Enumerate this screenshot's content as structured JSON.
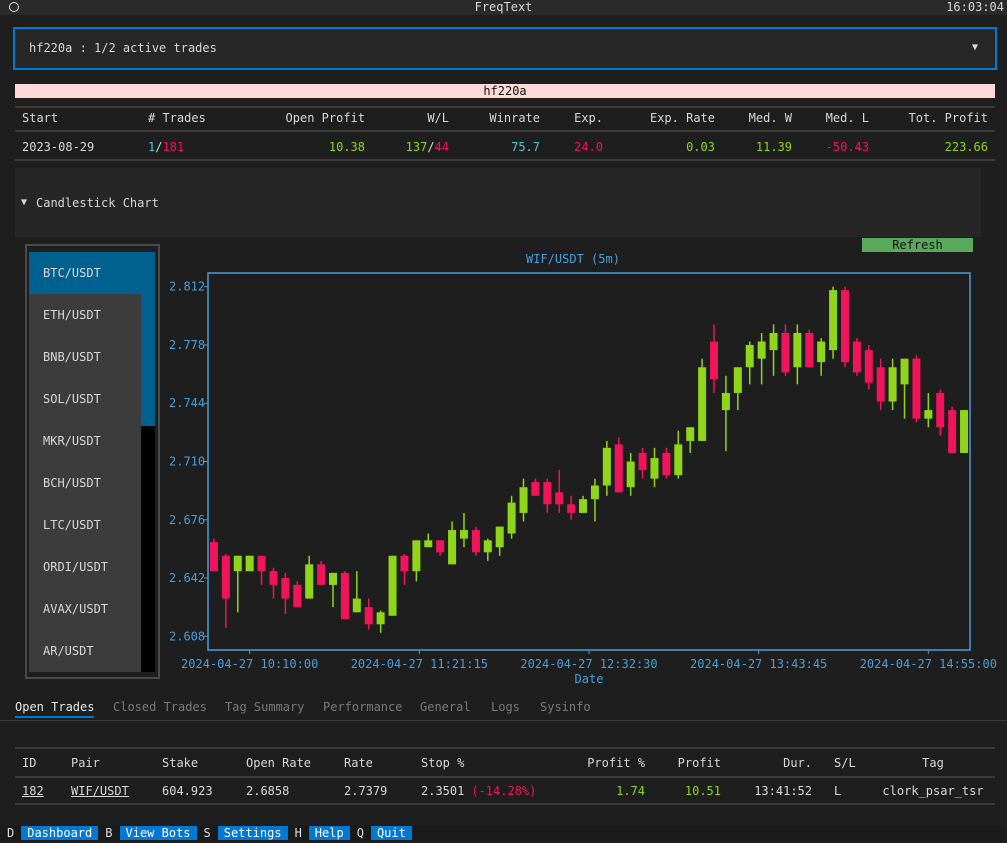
{
  "app": {
    "title": "FreqText",
    "clock": "16:03:04"
  },
  "bot_select": "hf220a : 1/2 active trades",
  "bot_name": "hf220a",
  "summary": {
    "headers": [
      "Start",
      "# Trades",
      "Open Profit",
      "W/L",
      "Winrate",
      "Exp.",
      "Exp. Rate",
      "Med. W",
      "Med. L",
      "Tot. Profit"
    ],
    "row": [
      [
        {
          "text": "2023-08-29"
        }
      ],
      [
        {
          "text": "1",
          "color": "#4fc8d6"
        },
        {
          "text": "/"
        },
        {
          "text": "181",
          "color": "#f0145a"
        }
      ],
      [
        {
          "text": "10.38",
          "color": "#8fd61a"
        }
      ],
      [
        {
          "text": "137",
          "color": "#8fd61a"
        },
        {
          "text": "/"
        },
        {
          "text": "44",
          "color": "#f0145a"
        }
      ],
      [
        {
          "text": "75.7",
          "color": "#4fc8d6"
        }
      ],
      [
        {
          "text": "24.0",
          "color": "#f0145a"
        }
      ],
      [
        {
          "text": "0.03",
          "color": "#8fd61a"
        }
      ],
      [
        {
          "text": "11.39",
          "color": "#8fd61a"
        }
      ],
      [
        {
          "text": "-50.43",
          "color": "#f0145a"
        }
      ],
      [
        {
          "text": "223.66",
          "color": "#8fd61a"
        }
      ]
    ]
  },
  "chart_section": "Candlestick Chart",
  "pairs": [
    "BTC/USDT",
    "ETH/USDT",
    "BNB/USDT",
    "SOL/USDT",
    "MKR/USDT",
    "BCH/USDT",
    "LTC/USDT",
    "ORDI/USDT",
    "AVAX/USDT",
    "AR/USDT"
  ],
  "selected_pair": 0,
  "refresh": "Refresh",
  "chart_data": {
    "type": "candlestick",
    "title": "WIF/USDT (5m)",
    "x_label": "Date",
    "up_color": "#8fd61a",
    "down_color": "#f0145a",
    "x": [
      "2024-04-27 09:55:00",
      "2024-04-27 10:00:00",
      "2024-04-27 10:05:00",
      "2024-04-27 10:10:00",
      "2024-04-27 10:15:00",
      "2024-04-27 10:20:00",
      "2024-04-27 10:25:00",
      "2024-04-27 10:30:00",
      "2024-04-27 10:35:00",
      "2024-04-27 10:40:00",
      "2024-04-27 10:45:00",
      "2024-04-27 10:50:00",
      "2024-04-27 10:55:00",
      "2024-04-27 11:00:00",
      "2024-04-27 11:05:00",
      "2024-04-27 11:10:00",
      "2024-04-27 11:15:00",
      "2024-04-27 11:20:00",
      "2024-04-27 11:25:00",
      "2024-04-27 11:30:00",
      "2024-04-27 11:35:00",
      "2024-04-27 11:40:00",
      "2024-04-27 11:45:00",
      "2024-04-27 11:50:00",
      "2024-04-27 11:55:00",
      "2024-04-27 12:00:00",
      "2024-04-27 12:05:00",
      "2024-04-27 12:10:00",
      "2024-04-27 12:15:00",
      "2024-04-27 12:20:00",
      "2024-04-27 12:25:00",
      "2024-04-27 12:30:00",
      "2024-04-27 12:35:00",
      "2024-04-27 12:40:00",
      "2024-04-27 12:45:00",
      "2024-04-27 12:50:00",
      "2024-04-27 12:55:00",
      "2024-04-27 13:00:00",
      "2024-04-27 13:05:00",
      "2024-04-27 13:10:00",
      "2024-04-27 13:15:00",
      "2024-04-27 13:20:00",
      "2024-04-27 13:25:00",
      "2024-04-27 13:30:00",
      "2024-04-27 13:35:00",
      "2024-04-27 13:40:00",
      "2024-04-27 13:45:00",
      "2024-04-27 13:50:00",
      "2024-04-27 13:55:00",
      "2024-04-27 14:00:00",
      "2024-04-27 14:05:00",
      "2024-04-27 14:10:00",
      "2024-04-27 14:15:00",
      "2024-04-27 14:20:00",
      "2024-04-27 14:25:00",
      "2024-04-27 14:30:00",
      "2024-04-27 14:35:00",
      "2024-04-27 14:40:00",
      "2024-04-27 14:45:00",
      "2024-04-27 14:50:00",
      "2024-04-27 14:55:00",
      "2024-04-27 15:00:00",
      "2024-04-27 15:05:00",
      "2024-04-27 15:10:00"
    ],
    "open": [
      2.663,
      2.655,
      2.646,
      2.646,
      2.655,
      2.646,
      2.642,
      2.638,
      2.63,
      2.65,
      2.638,
      2.645,
      2.622,
      2.625,
      2.615,
      2.62,
      2.655,
      2.646,
      2.66,
      2.664,
      2.65,
      2.665,
      2.67,
      2.657,
      2.66,
      2.668,
      2.68,
      2.698,
      2.698,
      2.692,
      2.685,
      2.68,
      2.688,
      2.696,
      2.72,
      2.695,
      2.715,
      2.7,
      2.715,
      2.702,
      2.722,
      2.722,
      2.78,
      2.74,
      2.75,
      2.765,
      2.77,
      2.775,
      2.785,
      2.765,
      2.785,
      2.768,
      2.775,
      2.81,
      2.78,
      2.775,
      2.765,
      2.745,
      2.755,
      2.77,
      2.735,
      2.75,
      2.74,
      2.715
    ],
    "high": [
      2.665,
      2.656,
      2.655,
      2.655,
      2.655,
      2.648,
      2.645,
      2.64,
      2.655,
      2.652,
      2.645,
      2.646,
      2.646,
      2.63,
      2.623,
      2.655,
      2.656,
      2.664,
      2.668,
      2.664,
      2.675,
      2.68,
      2.672,
      2.665,
      2.672,
      2.69,
      2.7,
      2.7,
      2.7,
      2.705,
      2.69,
      2.69,
      2.7,
      2.722,
      2.724,
      2.715,
      2.718,
      2.718,
      2.718,
      2.728,
      2.73,
      2.77,
      2.79,
      2.76,
      2.765,
      2.78,
      2.785,
      2.79,
      2.79,
      2.79,
      2.787,
      2.782,
      2.812,
      2.812,
      2.782,
      2.778,
      2.77,
      2.77,
      2.77,
      2.772,
      2.75,
      2.752,
      2.742,
      2.74
    ],
    "low": [
      2.646,
      2.613,
      2.622,
      2.646,
      2.638,
      2.63,
      2.621,
      2.625,
      2.63,
      2.638,
      2.625,
      2.618,
      2.622,
      2.612,
      2.61,
      2.62,
      2.638,
      2.64,
      2.66,
      2.655,
      2.65,
      2.66,
      2.655,
      2.652,
      2.655,
      2.665,
      2.675,
      2.69,
      2.68,
      2.68,
      2.676,
      2.68,
      2.675,
      2.69,
      2.692,
      2.69,
      2.7,
      2.695,
      2.7,
      2.7,
      2.715,
      2.722,
      2.75,
      2.716,
      2.74,
      2.755,
      2.755,
      2.76,
      2.76,
      2.755,
      2.765,
      2.76,
      2.77,
      2.765,
      2.76,
      2.752,
      2.74,
      2.74,
      2.735,
      2.733,
      2.73,
      2.725,
      2.715,
      2.715
    ],
    "close": [
      2.646,
      2.63,
      2.655,
      2.655,
      2.646,
      2.638,
      2.63,
      2.625,
      2.65,
      2.638,
      2.645,
      2.618,
      2.63,
      2.615,
      2.622,
      2.655,
      2.646,
      2.664,
      2.664,
      2.657,
      2.67,
      2.67,
      2.657,
      2.664,
      2.672,
      2.686,
      2.695,
      2.69,
      2.685,
      2.685,
      2.68,
      2.688,
      2.696,
      2.718,
      2.692,
      2.71,
      2.705,
      2.712,
      2.702,
      2.72,
      2.73,
      2.765,
      2.758,
      2.75,
      2.765,
      2.778,
      2.78,
      2.785,
      2.762,
      2.785,
      2.765,
      2.78,
      2.81,
      2.768,
      2.762,
      2.756,
      2.745,
      2.765,
      2.77,
      2.735,
      2.74,
      2.73,
      2.715,
      2.74
    ],
    "xlim": [
      "2024-04-27 09:52:30",
      "2024-04-27 15:12:30"
    ],
    "xticks": [
      "2024-04-27 10:10:00",
      "2024-04-27 11:21:15",
      "2024-04-27 12:32:30",
      "2024-04-27 13:43:45",
      "2024-04-27 14:55:00"
    ],
    "ylim": [
      2.6,
      2.82
    ],
    "yticks": [
      2.608,
      2.642,
      2.676,
      {
        "value": 2.71,
        "label": "2.710"
      },
      2.744,
      2.778,
      2.812
    ]
  },
  "tabs": [
    "Open Trades",
    "Closed Trades",
    "Tag Summary",
    "Performance",
    "General",
    "Logs",
    "Sysinfo"
  ],
  "active_tab": 0,
  "open_trades": {
    "headers": [
      "ID",
      "Pair",
      "Stake",
      "Open Rate",
      "Rate",
      "Stop %",
      "Profit %",
      "Profit",
      "Dur.",
      "S/L",
      "Tag"
    ],
    "rows": [
      [
        [
          {
            "text": "182",
            "underline": true
          }
        ],
        [
          {
            "text": "WIF/USDT",
            "underline": true
          }
        ],
        [
          {
            "text": "604.923"
          }
        ],
        [
          {
            "text": "2.6858"
          }
        ],
        [
          {
            "text": "2.7379"
          }
        ],
        [
          {
            "text": "2.3501"
          },
          {
            "text": "(-14.28%)",
            "color": "#f0145a"
          }
        ],
        [
          {
            "text": "1.74",
            "color": "#8fd61a"
          }
        ],
        [
          {
            "text": "10.51",
            "color": "#8fd61a"
          }
        ],
        [
          {
            "text": "13:41:52"
          }
        ],
        [
          {
            "text": "L"
          }
        ],
        [
          {
            "text": "clork_psar_tsr"
          }
        ]
      ]
    ]
  },
  "footer": [
    {
      "key": "D",
      "label": "Dashboard"
    },
    {
      "key": "B",
      "label": "View Bots"
    },
    {
      "key": "S",
      "label": "Settings"
    },
    {
      "key": "H",
      "label": "Help"
    },
    {
      "key": "Q",
      "label": "Quit"
    }
  ]
}
